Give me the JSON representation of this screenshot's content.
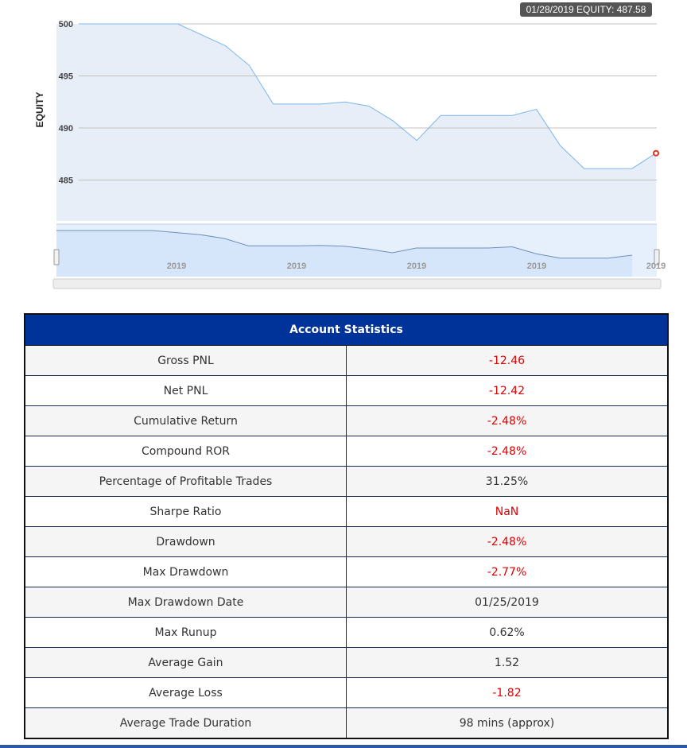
{
  "chart_data": {
    "type": "area",
    "title": "",
    "ylabel": "EQUITY",
    "xlabel": "",
    "ylim": [
      481.5,
      500.5
    ],
    "yticks": [
      500,
      495,
      490,
      485
    ],
    "tick_labels": [
      "500",
      "495",
      "490",
      "485"
    ],
    "x": [
      0,
      4,
      6,
      7,
      8,
      9,
      10,
      11,
      12,
      13,
      14,
      15,
      16,
      17,
      18,
      19,
      20,
      21,
      22,
      23,
      24
    ],
    "values": [
      500,
      500,
      497.9,
      496.0,
      492.3,
      492.3,
      492.3,
      492.5,
      492.1,
      490.7,
      488.8,
      491.2,
      491.2,
      491.2,
      491.2,
      491.8,
      488.3,
      486.1,
      486.1,
      486.1,
      487.58
    ],
    "navigator": {
      "x_labels": [
        "2019",
        "2019",
        "2019",
        "2019",
        "2019"
      ]
    },
    "tooltip": "01/28/2019 EQUITY: 487.58",
    "colors": {
      "line": "#7cb5ec",
      "fill": "#e7eef8",
      "grid": "#c0c0c0",
      "point": "#e03020",
      "nav_fill": "#d6e6fa"
    }
  },
  "table": {
    "title": "Account Statistics",
    "rows": [
      {
        "label": "Gross PNL",
        "value": "-12.46",
        "negative": true
      },
      {
        "label": "Net PNL",
        "value": "-12.42",
        "negative": true
      },
      {
        "label": "Cumulative Return",
        "value": "-2.48%",
        "negative": true
      },
      {
        "label": "Compound ROR",
        "value": "-2.48%",
        "negative": true
      },
      {
        "label": "Percentage of Profitable Trades",
        "value": "31.25%",
        "negative": false
      },
      {
        "label": "Sharpe Ratio",
        "value": "NaN",
        "negative": true
      },
      {
        "label": "Drawdown",
        "value": "-2.48%",
        "negative": true
      },
      {
        "label": "Max Drawdown",
        "value": "-2.77%",
        "negative": true
      },
      {
        "label": "Max Drawdown Date",
        "value": "01/25/2019",
        "negative": false
      },
      {
        "label": "Max Runup",
        "value": "0.62%",
        "negative": false
      },
      {
        "label": "Average Gain",
        "value": "1.52",
        "negative": false
      },
      {
        "label": "Average Loss",
        "value": "-1.82",
        "negative": true
      },
      {
        "label": "Average Trade Duration",
        "value": "98 mins (approx)",
        "negative": false
      }
    ]
  }
}
